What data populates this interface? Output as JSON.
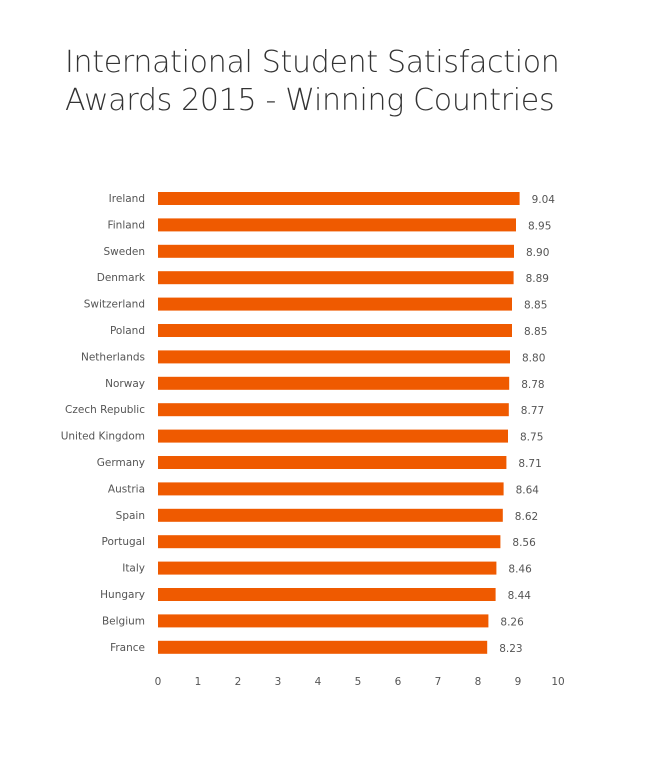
{
  "chart_data": {
    "type": "bar",
    "orientation": "horizontal",
    "title": "International Student Satisfaction Awards 2015 - Winning Countries",
    "categories": [
      "Ireland",
      "Finland",
      "Sweden",
      "Denmark",
      "Switzerland",
      "Poland",
      "Netherlands",
      "Norway",
      "Czech Republic",
      "United Kingdom",
      "Germany",
      "Austria",
      "Spain",
      "Portugal",
      "Italy",
      "Hungary",
      "Belgium",
      "France"
    ],
    "values": [
      9.04,
      8.95,
      8.9,
      8.89,
      8.85,
      8.85,
      8.8,
      8.78,
      8.77,
      8.75,
      8.71,
      8.64,
      8.62,
      8.56,
      8.46,
      8.44,
      8.26,
      8.23
    ],
    "value_labels": [
      "9.04",
      "8.95",
      "8.90",
      "8.89",
      "8.85",
      "8.85",
      "8.80",
      "8.78",
      "8.77",
      "8.75",
      "8.71",
      "8.64",
      "8.62",
      "8.56",
      "8.46",
      "8.44",
      "8.26",
      "8.23"
    ],
    "xlim": [
      0,
      10
    ],
    "xticks": [
      "0",
      "1",
      "2",
      "3",
      "4",
      "5",
      "6",
      "7",
      "8",
      "9",
      "10"
    ],
    "xlabel": "",
    "ylabel": "",
    "grid": false,
    "legend": "none",
    "bar_color": "#ef5a00"
  }
}
